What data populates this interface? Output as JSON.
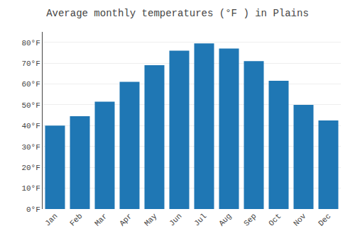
{
  "chart_data": {
    "type": "bar",
    "title": "Average monthly temperatures (°F ) in Plains",
    "categories": [
      "Jan",
      "Feb",
      "Mar",
      "Apr",
      "May",
      "Jun",
      "Jul",
      "Aug",
      "Sep",
      "Oct",
      "Nov",
      "Dec"
    ],
    "values": [
      40,
      44.5,
      51.5,
      61,
      69,
      76,
      79.5,
      77,
      71,
      61.5,
      50,
      42.5
    ],
    "ylim": [
      0,
      85
    ],
    "yticks": [
      {
        "value": 0,
        "label": "0°F"
      },
      {
        "value": 10,
        "label": "10°F"
      },
      {
        "value": 20,
        "label": "20°F"
      },
      {
        "value": 30,
        "label": "30°F"
      },
      {
        "value": 40,
        "label": "40°F"
      },
      {
        "value": 50,
        "label": "50°F"
      },
      {
        "value": 60,
        "label": "60°F"
      },
      {
        "value": 70,
        "label": "70°F"
      },
      {
        "value": 80,
        "label": "80°F"
      }
    ],
    "grid": true
  }
}
